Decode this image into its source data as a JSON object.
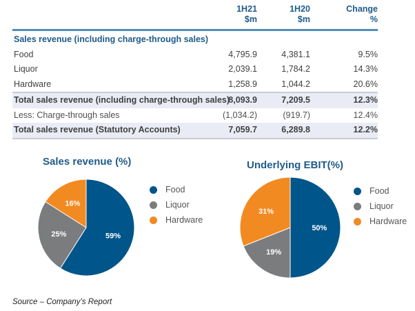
{
  "table": {
    "columns": [
      {
        "line1": "1H21",
        "line2": "$m"
      },
      {
        "line1": "1H20",
        "line2": "$m"
      },
      {
        "line1": "Change",
        "line2": "%"
      }
    ],
    "section_title": "Sales revenue (including charge-through sales)",
    "rows": [
      {
        "label": "Food",
        "v1": "4,795.9",
        "v2": "4,381.1",
        "v3": "9.5%"
      },
      {
        "label": "Liquor",
        "v1": "2,039.1",
        "v2": "1,784.2",
        "v3": "14.3%"
      },
      {
        "label": "Hardware",
        "v1": "1,258.9",
        "v2": "1,044.2",
        "v3": "20.6%"
      },
      {
        "label": "Total sales revenue (including charge-through sales)",
        "v1": "8,093.9",
        "v2": "7,209.5",
        "v3": "12.3%"
      },
      {
        "label": "Less: Charge-through sales",
        "v1": "(1,034.2)",
        "v2": "(919.7)",
        "v3": "12.4%"
      },
      {
        "label": "Total sales revenue (Statutory Accounts)",
        "v1": "7,059.7",
        "v2": "6,289.8",
        "v3": "12.2%"
      }
    ]
  },
  "colors": {
    "food": "#00558a",
    "liquor": "#7b7c7e",
    "hardware": "#f28a22",
    "title": "#1f5b8a"
  },
  "chart_data": [
    {
      "type": "pie",
      "title": "Sales revenue (%)",
      "categories": [
        "Food",
        "Liquor",
        "Hardware"
      ],
      "values": [
        59,
        25,
        16
      ],
      "labels": [
        "59%",
        "25%",
        "16%"
      ],
      "legend_position": "right"
    },
    {
      "type": "pie",
      "title": "Underlying EBIT(%)",
      "categories": [
        "Food",
        "Liquor",
        "Hardware"
      ],
      "values": [
        50,
        19,
        31
      ],
      "labels": [
        "50%",
        "19%",
        "31%"
      ],
      "legend_position": "right"
    }
  ],
  "source": "Source – Company’s Report"
}
